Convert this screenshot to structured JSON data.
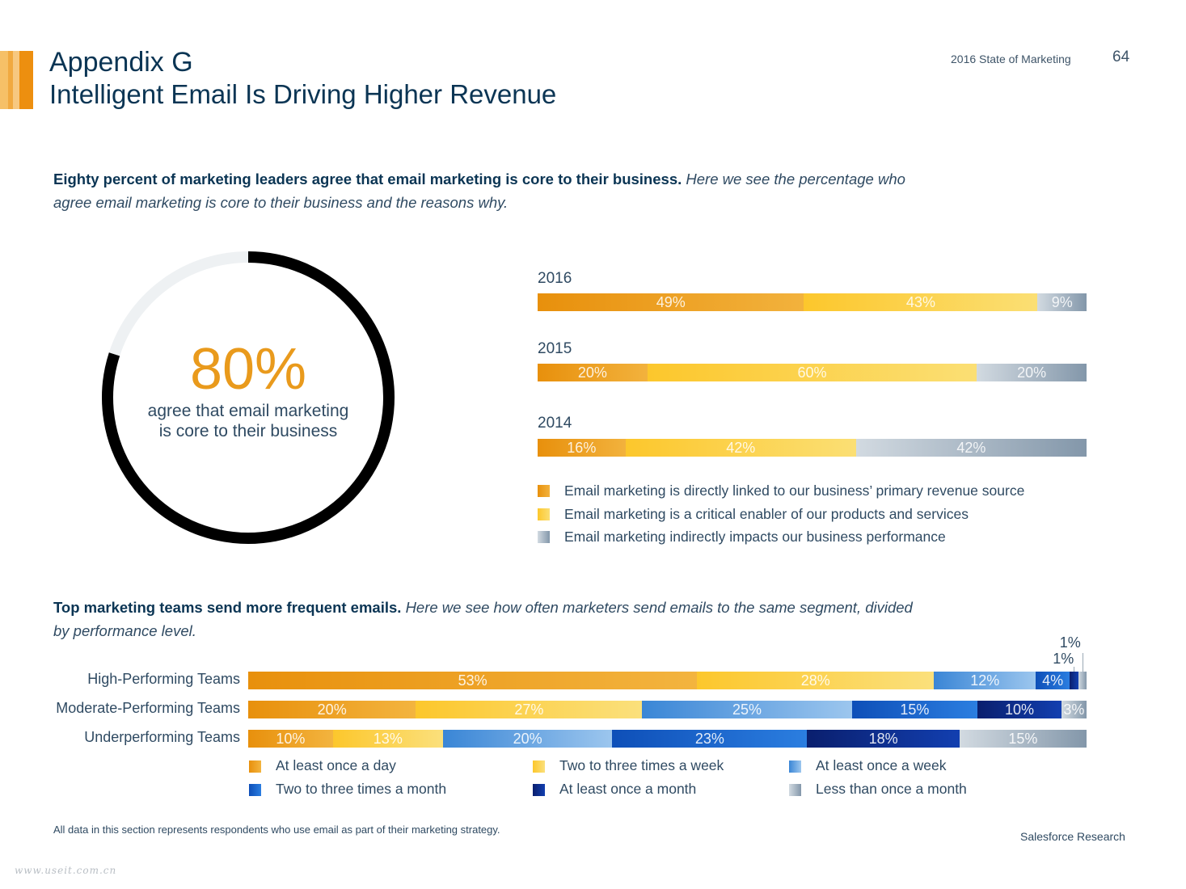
{
  "header": {
    "title_line1": "Appendix G",
    "title_line2": "Intelligent Email Is Driving Higher Revenue",
    "report_name": "2016 State of Marketing",
    "page_number": "64"
  },
  "section1": {
    "intro_bold": "Eighty percent of marketing leaders agree that email marketing is core to their business.",
    "intro_italic_line1": "Here we see the percentage who",
    "intro_italic_line2": "agree email marketing is core to their business and the reasons why."
  },
  "section2": {
    "intro_bold": "Top marketing teams send more frequent emails.",
    "intro_italic_line1": "Here we see how often marketers send emails to the same segment, divided",
    "intro_italic_line2": "by performance level."
  },
  "footer": {
    "note": "All data in this section represents respondents who use email as part of their marketing strategy.",
    "brand": "Salesforce Research",
    "watermark": "www.useit.com.cn"
  },
  "colors": {
    "primary_orange": "#e8900c",
    "mid_yellow": "#fcc72c",
    "gray_blue": "#8a9fb2",
    "navy": "#0b3554"
  },
  "chart_data": [
    {
      "type": "pie",
      "subtype": "donut",
      "value_label": "80%",
      "caption_line1": "agree that email marketing",
      "caption_line2": "is core to their business",
      "slices": [
        {
          "name": "agree",
          "value": 80,
          "color": "#000000"
        },
        {
          "name": "remainder",
          "value": 20,
          "color": "#eef1f3"
        }
      ]
    },
    {
      "type": "bar",
      "orientation": "horizontal",
      "stacked": true,
      "categories": [
        "2016",
        "2015",
        "2014"
      ],
      "series": [
        {
          "name": "Email marketing is directly linked to our business’ primary revenue source",
          "values": [
            49,
            20,
            16
          ],
          "labels": [
            "49%",
            "20%",
            "16%"
          ],
          "color_from": "#e8900c",
          "color_to": "#f2b23d"
        },
        {
          "name": "Email marketing is a critical enabler of our products and services",
          "values": [
            43,
            60,
            42
          ],
          "labels": [
            "43%",
            "60%",
            "42%"
          ],
          "color_from": "#fcc72c",
          "color_to": "#fbdf74"
        },
        {
          "name": "Email marketing indirectly impacts our business performance",
          "values": [
            9,
            20,
            42
          ],
          "labels": [
            "9%",
            "20%",
            "42%"
          ],
          "color_from": "#d2dae1",
          "color_to": "#8397aa"
        }
      ]
    },
    {
      "type": "bar",
      "orientation": "horizontal",
      "stacked": true,
      "categories": [
        "High-Performing Teams",
        "Moderate-Performing Teams",
        "Underperforming Teams"
      ],
      "series": [
        {
          "name": "At least once a day",
          "values": [
            53,
            20,
            10
          ],
          "labels": [
            "53%",
            "20%",
            "10%"
          ],
          "color_from": "#e8900c",
          "color_to": "#f3b43f"
        },
        {
          "name": "Two to three times a week",
          "values": [
            28,
            27,
            13
          ],
          "labels": [
            "28%",
            "27%",
            "13%"
          ],
          "color_from": "#fcc72c",
          "color_to": "#fbe07c"
        },
        {
          "name": "At least once a week",
          "values": [
            12,
            25,
            20
          ],
          "labels": [
            "12%",
            "25%",
            "20%"
          ],
          "color_from": "#3a86d6",
          "color_to": "#9cc6ee"
        },
        {
          "name": "Two to three times a month",
          "values": [
            4,
            15,
            23
          ],
          "labels": [
            "4%",
            "15%",
            "23%"
          ],
          "color_from": "#0e4fb8",
          "color_to": "#2b7ee0"
        },
        {
          "name": "At least once a month",
          "values": [
            1,
            10,
            18
          ],
          "labels": [
            "1%",
            "10%",
            "18%"
          ],
          "color_from": "#0a1f6e",
          "color_to": "#123fb0"
        },
        {
          "name": "Less than once a month",
          "values": [
            1,
            3,
            15
          ],
          "labels": [
            "1%",
            "3%",
            "15%"
          ],
          "color_from": "#d2dae1",
          "color_to": "#8397aa"
        }
      ]
    }
  ]
}
